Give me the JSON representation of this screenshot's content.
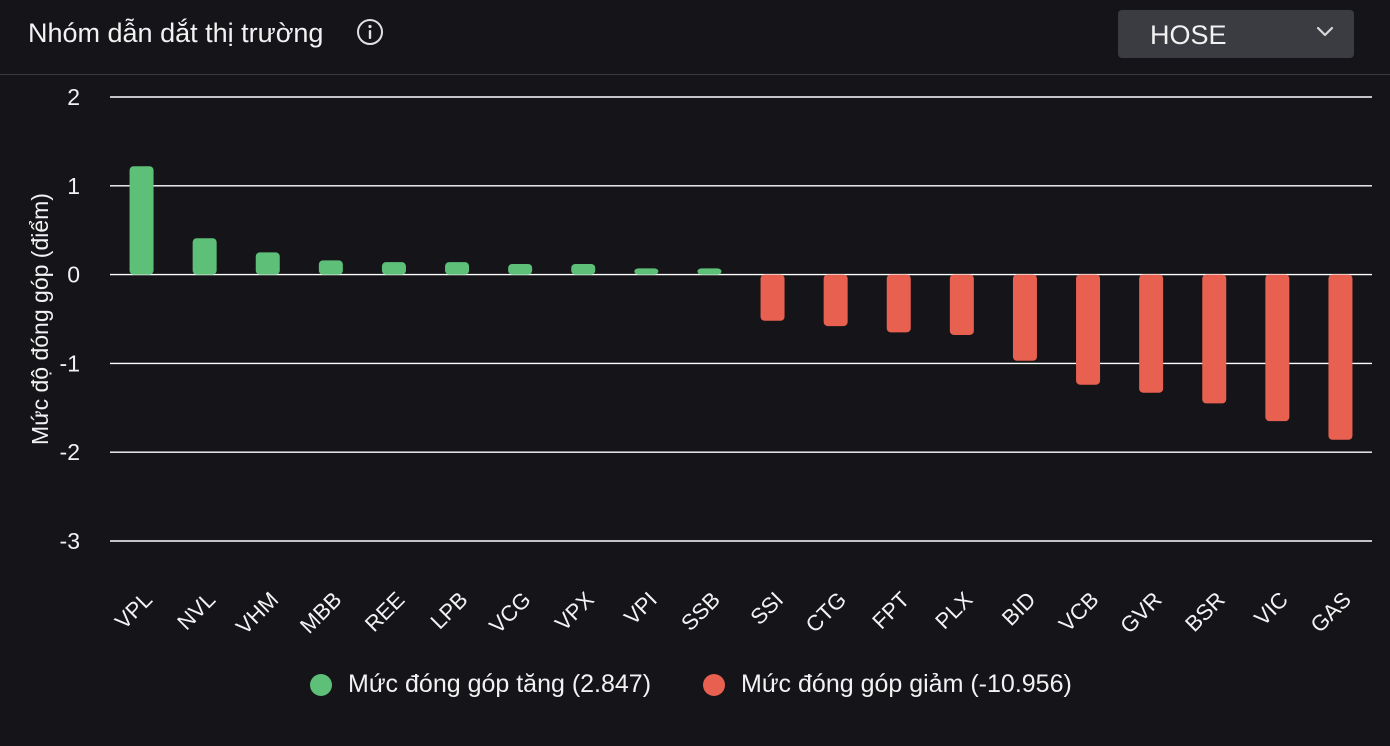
{
  "header": {
    "title": "Nhóm dẫn dắt thị trường",
    "info_icon": "info-circle-icon",
    "exchange_select": {
      "value": "HOSE",
      "icon": "chevron-down-icon"
    }
  },
  "colors": {
    "background": "#141419",
    "positive": "#5ebf78",
    "negative": "#e8604f",
    "grid": "#ffffff"
  },
  "chart_data": {
    "type": "bar",
    "ylabel": "Mức độ đóng góp (điểm)",
    "ylim": [
      -3,
      2
    ],
    "yticks": [
      2,
      1,
      0,
      -1,
      -2,
      -3
    ],
    "grid": true,
    "legend_position": "bottom",
    "categories": [
      "VPL",
      "NVL",
      "VHM",
      "MBB",
      "REE",
      "LPB",
      "VCG",
      "VPX",
      "VPI",
      "SSB",
      "SSI",
      "CTG",
      "FPT",
      "PLX",
      "BID",
      "VCB",
      "GVR",
      "BSR",
      "VIC",
      "GAS"
    ],
    "values": [
      1.22,
      0.41,
      0.25,
      0.16,
      0.14,
      0.14,
      0.12,
      0.12,
      0.07,
      0.07,
      -0.52,
      -0.58,
      -0.65,
      -0.68,
      -0.97,
      -1.24,
      -1.33,
      -1.45,
      -1.65,
      -1.86
    ],
    "legend": [
      {
        "label": "Mức đóng góp tăng (2.847)",
        "color": "#5ebf78"
      },
      {
        "label": "Mức đóng góp giảm (-10.956)",
        "color": "#e8604f"
      }
    ]
  }
}
